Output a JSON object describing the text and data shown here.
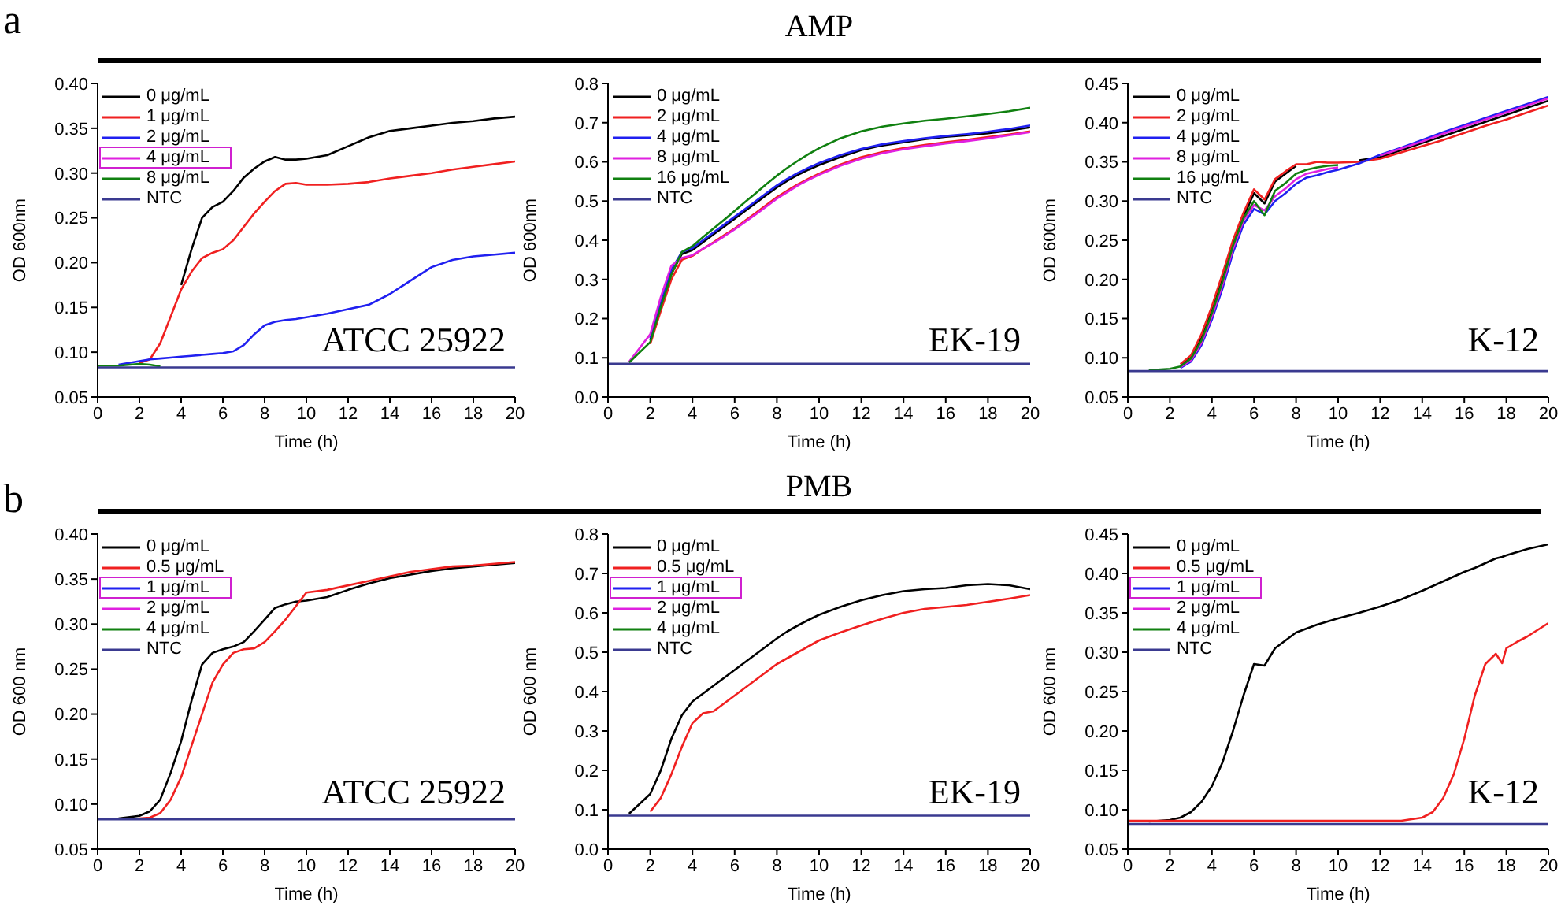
{
  "chart_data": [
    {
      "type": "line",
      "title": "a",
      "xlabel": "Time (h)",
      "ylabel": "OD 600nm",
      "annotations": [
        "ATCC 25922"
      ],
      "legend": "top left",
      "xlim": [
        0,
        20
      ],
      "xticks": [
        0,
        2,
        4,
        6,
        8,
        10,
        12,
        14,
        16,
        18,
        20
      ],
      "ylim": [
        0.05,
        0.4
      ],
      "yticks": [
        {
          "value": 0.05,
          "label": "0.05"
        },
        {
          "value": 0.1,
          "label": "0.10"
        },
        {
          "value": 0.15,
          "label": "0.15"
        },
        {
          "value": 0.2,
          "label": "0.20"
        },
        {
          "value": 0.25,
          "label": "0.25"
        },
        {
          "value": 0.3,
          "label": "0.30"
        },
        {
          "value": 0.35,
          "label": "0.35"
        },
        {
          "value": 0.4,
          "label": "0.40"
        }
      ],
      "x": [
        0,
        1,
        2,
        2.5,
        3,
        3.5,
        4,
        4.5,
        5,
        5.5,
        6,
        6.5,
        7,
        7.5,
        8,
        8.5,
        9,
        9.5,
        10,
        11,
        12,
        13,
        14,
        15,
        16,
        17,
        18,
        19,
        20
      ],
      "series": [
        {
          "name": "0 μg/mL",
          "color": "#000000",
          "values": [
            null,
            null,
            null,
            null,
            null,
            null,
            0.175,
            0.215,
            0.25,
            0.262,
            0.268,
            0.28,
            0.295,
            0.305,
            0.313,
            0.318,
            0.315,
            0.315,
            0.316,
            0.32,
            0.33,
            0.34,
            0.347,
            0.35,
            0.353,
            0.356,
            0.358,
            0.361,
            0.363
          ]
        },
        {
          "name": "1 μg/mL",
          "color": "#f02020",
          "values": [
            null,
            null,
            0.088,
            0.092,
            0.11,
            0.14,
            0.17,
            0.19,
            0.205,
            0.211,
            0.215,
            0.225,
            0.24,
            0.255,
            0.268,
            0.28,
            0.288,
            0.289,
            0.287,
            0.287,
            0.288,
            0.29,
            0.294,
            0.297,
            0.3,
            0.304,
            0.307,
            0.31,
            0.313
          ]
        },
        {
          "name": "2 μg/mL",
          "color": "#2020f0",
          "values": [
            null,
            0.086,
            0.09,
            0.092,
            0.093,
            0.094,
            0.095,
            0.096,
            0.097,
            0.098,
            0.099,
            0.101,
            0.108,
            0.12,
            0.13,
            0.134,
            0.136,
            0.137,
            0.139,
            0.143,
            0.148,
            0.153,
            0.165,
            0.18,
            0.195,
            0.203,
            0.207,
            0.209,
            0.211
          ]
        },
        {
          "name": "4 μg/mL",
          "color": "#e020e0",
          "values": [
            null,
            null,
            null,
            null,
            null,
            null,
            null,
            null,
            null,
            null,
            null,
            null,
            null,
            null,
            null,
            null,
            null,
            null,
            null,
            null,
            null,
            null,
            null,
            null,
            null,
            null,
            null,
            null,
            null
          ]
        },
        {
          "name": "8 μg/mL",
          "color": "#108010",
          "values": [
            0.085,
            0.085,
            0.087,
            0.086,
            0.084,
            null,
            null,
            null,
            null,
            null,
            null,
            null,
            null,
            null,
            null,
            null,
            null,
            null,
            null,
            null,
            null,
            null,
            null,
            null,
            null,
            null,
            null,
            null,
            null
          ]
        },
        {
          "name": "NTC",
          "color": "#3a3a90",
          "values": [
            0.083,
            0.083,
            0.083,
            0.083,
            0.083,
            0.083,
            0.083,
            0.083,
            0.083,
            0.083,
            0.083,
            0.083,
            0.083,
            0.083,
            0.083,
            0.083,
            0.083,
            0.083,
            0.083,
            0.083,
            0.083,
            0.083,
            0.083,
            0.083,
            0.083,
            0.083,
            0.083,
            0.083,
            0.083
          ]
        }
      ]
    },
    {
      "type": "line",
      "title": "AMP",
      "xlabel": "Time (h)",
      "ylabel": "OD 600nm",
      "annotations": [
        "EK-19"
      ],
      "legend": "top left",
      "xlim": [
        0,
        20
      ],
      "xticks": [
        0,
        2,
        4,
        6,
        8,
        10,
        12,
        14,
        16,
        18,
        20
      ],
      "ylim": [
        0,
        0.8
      ],
      "yticks": [
        {
          "value": 0,
          "label": "0.0"
        },
        {
          "value": 0.1,
          "label": "0.1"
        },
        {
          "value": 0.2,
          "label": "0.2"
        },
        {
          "value": 0.3,
          "label": "0.3"
        },
        {
          "value": 0.4,
          "label": "0.4"
        },
        {
          "value": 0.5,
          "label": "0.5"
        },
        {
          "value": 0.6,
          "label": "0.6"
        },
        {
          "value": 0.7,
          "label": "0.7"
        },
        {
          "value": 0.8,
          "label": "0.8"
        }
      ],
      "x": [
        0,
        1,
        2,
        2.5,
        3,
        3.5,
        4,
        4.5,
        5,
        5.5,
        6,
        6.5,
        7,
        7.5,
        8,
        8.5,
        9,
        9.5,
        10,
        11,
        12,
        13,
        14,
        15,
        16,
        17,
        18,
        19,
        20
      ],
      "series": [
        {
          "name": "0 μg/mL",
          "color": "#000000",
          "values": [
            null,
            null,
            0.145,
            0.235,
            0.315,
            0.365,
            0.375,
            0.395,
            0.415,
            0.435,
            0.455,
            0.475,
            0.495,
            0.515,
            0.535,
            0.552,
            0.567,
            0.58,
            0.592,
            0.612,
            0.63,
            0.642,
            0.65,
            0.658,
            0.664,
            0.668,
            0.673,
            0.68,
            0.688
          ]
        },
        {
          "name": "2 μg/mL",
          "color": "#f02020",
          "values": [
            null,
            null,
            0.135,
            0.22,
            0.3,
            0.35,
            0.36,
            0.378,
            0.395,
            0.413,
            0.43,
            0.45,
            0.47,
            0.49,
            0.51,
            0.527,
            0.543,
            0.557,
            0.57,
            0.593,
            0.612,
            0.625,
            0.635,
            0.643,
            0.65,
            0.656,
            0.663,
            0.67,
            0.678
          ]
        },
        {
          "name": "4 μg/mL",
          "color": "#2020f0",
          "values": [
            null,
            null,
            0.15,
            0.245,
            0.325,
            0.37,
            0.38,
            0.4,
            0.42,
            0.44,
            0.46,
            0.48,
            0.5,
            0.52,
            0.54,
            0.557,
            0.572,
            0.585,
            0.597,
            0.617,
            0.633,
            0.645,
            0.653,
            0.66,
            0.666,
            0.671,
            0.677,
            0.684,
            0.693
          ]
        },
        {
          "name": "8 μg/mL",
          "color": "#e020e0",
          "values": [
            null,
            0.09,
            0.16,
            0.255,
            0.335,
            0.355,
            0.362,
            0.378,
            0.393,
            0.41,
            0.428,
            0.447,
            0.466,
            0.486,
            0.506,
            0.523,
            0.54,
            0.554,
            0.567,
            0.59,
            0.608,
            0.622,
            0.632,
            0.64,
            0.647,
            0.653,
            0.66,
            0.668,
            0.676
          ]
        },
        {
          "name": "16 μg/mL",
          "color": "#108010",
          "values": [
            null,
            0.088,
            0.14,
            0.23,
            0.312,
            0.37,
            0.385,
            0.408,
            0.43,
            0.452,
            0.475,
            0.498,
            0.52,
            0.543,
            0.565,
            0.585,
            0.603,
            0.62,
            0.635,
            0.66,
            0.678,
            0.69,
            0.698,
            0.705,
            0.71,
            0.716,
            0.722,
            0.729,
            0.738
          ]
        },
        {
          "name": "NTC",
          "color": "#3a3a90",
          "values": [
            0.085,
            0.085,
            0.085,
            0.085,
            0.085,
            0.085,
            0.085,
            0.085,
            0.085,
            0.085,
            0.085,
            0.085,
            0.085,
            0.085,
            0.085,
            0.085,
            0.085,
            0.085,
            0.085,
            0.085,
            0.085,
            0.085,
            0.085,
            0.085,
            0.085,
            0.085,
            0.085,
            0.085,
            0.085
          ]
        }
      ]
    },
    {
      "type": "line",
      "xlabel": "Time (h)",
      "ylabel": "OD 600nm",
      "annotations": [
        "K-12"
      ],
      "legend": "top left",
      "xlim": [
        0,
        20
      ],
      "xticks": [
        0,
        2,
        4,
        6,
        8,
        10,
        12,
        14,
        16,
        18,
        20
      ],
      "ylim": [
        0.05,
        0.45
      ],
      "yticks": [
        {
          "value": 0.05,
          "label": "0.05"
        },
        {
          "value": 0.1,
          "label": "0.10"
        },
        {
          "value": 0.15,
          "label": "0.15"
        },
        {
          "value": 0.2,
          "label": "0.20"
        },
        {
          "value": 0.25,
          "label": "0.25"
        },
        {
          "value": 0.3,
          "label": "0.30"
        },
        {
          "value": 0.35,
          "label": "0.35"
        },
        {
          "value": 0.4,
          "label": "0.40"
        },
        {
          "value": 0.45,
          "label": "0.45"
        }
      ],
      "x": [
        0,
        1,
        2,
        2.5,
        3,
        3.5,
        4,
        4.5,
        5,
        5.5,
        6,
        6.5,
        7,
        7.5,
        8,
        8.5,
        9,
        9.5,
        10,
        11,
        12,
        13,
        14,
        15,
        16,
        17,
        18,
        19,
        20
      ],
      "series": [
        {
          "name": "0 μg/mL",
          "color": "#000000",
          "values": [
            null,
            null,
            null,
            0.09,
            0.1,
            0.125,
            0.16,
            0.2,
            0.245,
            0.28,
            0.31,
            0.297,
            0.325,
            0.335,
            0.345,
            null,
            null,
            null,
            null,
            0.352,
            0.356,
            0.365,
            0.374,
            0.383,
            0.392,
            0.401,
            0.41,
            0.419,
            0.428
          ]
        },
        {
          "name": "2 μg/mL",
          "color": "#f02020",
          "values": [
            null,
            null,
            null,
            0.092,
            0.103,
            0.13,
            0.166,
            0.207,
            0.25,
            0.285,
            0.315,
            0.302,
            0.328,
            0.338,
            0.347,
            0.347,
            0.35,
            0.349,
            0.349,
            0.35,
            0.354,
            0.362,
            0.37,
            0.378,
            0.387,
            0.396,
            0.404,
            0.413,
            0.422
          ]
        },
        {
          "name": "4 μg/mL",
          "color": "#2020f0",
          "values": [
            null,
            null,
            null,
            0.087,
            0.095,
            0.116,
            0.149,
            0.188,
            0.234,
            0.27,
            0.29,
            0.283,
            0.3,
            0.31,
            0.322,
            0.33,
            0.333,
            0.337,
            0.34,
            0.348,
            0.359,
            0.368,
            0.378,
            0.388,
            0.397,
            0.406,
            0.415,
            0.424,
            0.433
          ]
        },
        {
          "name": "8 μg/mL",
          "color": "#e020e0",
          "values": [
            null,
            null,
            null,
            0.088,
            0.097,
            0.119,
            0.153,
            0.193,
            0.239,
            0.275,
            0.295,
            0.288,
            0.306,
            0.316,
            0.328,
            0.335,
            0.338,
            0.341,
            0.343,
            null,
            0.358,
            0.367,
            0.376,
            0.386,
            0.395,
            0.404,
            0.413,
            0.422,
            0.431
          ]
        },
        {
          "name": "16 μg/mL",
          "color": "#108010",
          "values": [
            null,
            0.084,
            0.086,
            0.089,
            0.099,
            0.122,
            0.157,
            0.197,
            0.243,
            0.278,
            0.3,
            0.282,
            0.313,
            0.323,
            0.335,
            0.34,
            0.343,
            0.345,
            0.346,
            null,
            null,
            null,
            null,
            null,
            null,
            null,
            null,
            null,
            null
          ]
        },
        {
          "name": "NTC",
          "color": "#3a3a90",
          "values": [
            0.083,
            0.083,
            0.083,
            0.083,
            0.083,
            0.083,
            0.083,
            0.083,
            0.083,
            0.083,
            0.083,
            0.083,
            0.083,
            0.083,
            0.083,
            0.083,
            0.083,
            0.083,
            0.083,
            0.083,
            0.083,
            0.083,
            0.083,
            0.083,
            0.083,
            0.083,
            0.083,
            0.083,
            0.083
          ]
        }
      ]
    },
    {
      "type": "line",
      "title": "b",
      "xlabel": "Time (h)",
      "ylabel": "OD 600 nm",
      "annotations": [
        "ATCC 25922"
      ],
      "legend": "top left",
      "xlim": [
        0,
        20
      ],
      "xticks": [
        0,
        2,
        4,
        6,
        8,
        10,
        12,
        14,
        16,
        18,
        20
      ],
      "ylim": [
        0.05,
        0.4
      ],
      "yticks": [
        {
          "value": 0.05,
          "label": "0.05"
        },
        {
          "value": 0.1,
          "label": "0.10"
        },
        {
          "value": 0.15,
          "label": "0.15"
        },
        {
          "value": 0.2,
          "label": "0.20"
        },
        {
          "value": 0.25,
          "label": "0.25"
        },
        {
          "value": 0.3,
          "label": "0.30"
        },
        {
          "value": 0.35,
          "label": "0.35"
        },
        {
          "value": 0.4,
          "label": "0.40"
        }
      ],
      "x": [
        0,
        1,
        2,
        2.5,
        3,
        3.5,
        4,
        4.5,
        5,
        5.5,
        6,
        6.5,
        7,
        7.5,
        8,
        8.5,
        9,
        9.5,
        10,
        11,
        12,
        13,
        14,
        15,
        16,
        17,
        18,
        19,
        20
      ],
      "series": [
        {
          "name": "0 μg/mL",
          "color": "#000000",
          "values": [
            null,
            0.084,
            0.087,
            0.092,
            0.105,
            0.135,
            0.17,
            0.215,
            0.255,
            0.268,
            0.272,
            0.275,
            0.28,
            0.292,
            0.305,
            0.318,
            0.322,
            0.325,
            0.326,
            0.33,
            0.338,
            0.345,
            0.351,
            0.355,
            0.359,
            0.362,
            0.364,
            0.366,
            0.368
          ]
        },
        {
          "name": "0.5 μg/mL",
          "color": "#f02020",
          "values": [
            null,
            null,
            0.084,
            0.085,
            0.09,
            0.105,
            0.13,
            0.165,
            0.2,
            0.235,
            0.255,
            0.268,
            0.272,
            0.273,
            0.28,
            0.292,
            0.305,
            0.32,
            0.335,
            0.338,
            0.343,
            0.348,
            0.353,
            0.358,
            0.361,
            0.364,
            0.365,
            0.367,
            0.369
          ]
        },
        {
          "name": "1 μg/mL",
          "color": "#2020f0",
          "values": [
            null,
            null,
            null,
            null,
            null,
            null,
            null,
            null,
            null,
            null,
            null,
            null,
            null,
            null,
            null,
            null,
            null,
            null,
            null,
            null,
            null,
            null,
            null,
            null,
            null,
            null,
            null,
            null,
            null
          ]
        },
        {
          "name": "2 μg/mL",
          "color": "#e020e0",
          "values": [
            null,
            null,
            null,
            null,
            null,
            null,
            null,
            null,
            null,
            null,
            null,
            null,
            null,
            null,
            null,
            null,
            null,
            null,
            null,
            null,
            null,
            null,
            null,
            null,
            null,
            null,
            null,
            null,
            null
          ]
        },
        {
          "name": "4 μg/mL",
          "color": "#108010",
          "values": [
            null,
            null,
            null,
            null,
            null,
            null,
            null,
            null,
            null,
            null,
            null,
            null,
            null,
            null,
            null,
            null,
            null,
            null,
            null,
            null,
            null,
            null,
            null,
            null,
            null,
            null,
            null,
            null,
            null
          ]
        },
        {
          "name": "NTC",
          "color": "#3a3a90",
          "values": [
            0.083,
            0.083,
            0.083,
            0.083,
            0.083,
            0.083,
            0.083,
            0.083,
            0.083,
            0.083,
            0.083,
            0.083,
            0.083,
            0.083,
            0.083,
            0.083,
            0.083,
            0.083,
            0.083,
            0.083,
            0.083,
            0.083,
            0.083,
            0.083,
            0.083,
            0.083,
            0.083,
            0.083,
            0.083
          ]
        }
      ]
    },
    {
      "type": "line",
      "title": "PMB",
      "xlabel": "Time (h)",
      "ylabel": "OD 600 nm",
      "annotations": [
        "EK-19"
      ],
      "legend": "top left",
      "xlim": [
        0,
        20
      ],
      "xticks": [
        0,
        2,
        4,
        6,
        8,
        10,
        12,
        14,
        16,
        18,
        20
      ],
      "ylim": [
        0,
        0.8
      ],
      "yticks": [
        {
          "value": 0,
          "label": "0.0"
        },
        {
          "value": 0.1,
          "label": "0.1"
        },
        {
          "value": 0.2,
          "label": "0.2"
        },
        {
          "value": 0.3,
          "label": "0.3"
        },
        {
          "value": 0.4,
          "label": "0.4"
        },
        {
          "value": 0.5,
          "label": "0.5"
        },
        {
          "value": 0.6,
          "label": "0.6"
        },
        {
          "value": 0.7,
          "label": "0.7"
        },
        {
          "value": 0.8,
          "label": "0.8"
        }
      ],
      "x": [
        0,
        1,
        2,
        2.5,
        3,
        3.5,
        4,
        4.5,
        5,
        5.5,
        6,
        6.5,
        7,
        7.5,
        8,
        8.5,
        9,
        9.5,
        10,
        11,
        12,
        13,
        14,
        15,
        16,
        17,
        18,
        19,
        20
      ],
      "series": [
        {
          "name": "0 μg/mL",
          "color": "#000000",
          "values": [
            null,
            0.09,
            0.14,
            0.2,
            0.28,
            0.34,
            0.375,
            0.395,
            0.415,
            0.435,
            0.455,
            0.475,
            0.495,
            0.515,
            0.535,
            0.553,
            0.568,
            0.582,
            0.595,
            0.615,
            0.632,
            0.645,
            0.655,
            0.66,
            0.663,
            0.67,
            0.673,
            0.67,
            0.66
          ]
        },
        {
          "name": "0.5 μg/mL",
          "color": "#f02020",
          "values": [
            null,
            null,
            0.095,
            0.13,
            0.19,
            0.26,
            0.32,
            0.345,
            0.35,
            0.37,
            0.39,
            0.41,
            0.43,
            0.45,
            0.47,
            0.485,
            0.5,
            0.515,
            0.53,
            0.55,
            0.568,
            0.585,
            0.6,
            0.61,
            0.615,
            0.62,
            0.628,
            0.636,
            0.645
          ]
        },
        {
          "name": "1 μg/mL",
          "color": "#2020f0",
          "values": [
            null,
            null,
            null,
            null,
            null,
            null,
            null,
            null,
            null,
            null,
            null,
            null,
            null,
            null,
            null,
            null,
            null,
            null,
            null,
            null,
            null,
            null,
            null,
            null,
            null,
            null,
            null,
            null,
            null
          ]
        },
        {
          "name": "2 μg/mL",
          "color": "#e020e0",
          "values": [
            null,
            null,
            null,
            null,
            null,
            null,
            null,
            null,
            null,
            null,
            null,
            null,
            null,
            null,
            null,
            null,
            null,
            null,
            null,
            null,
            null,
            null,
            null,
            null,
            null,
            null,
            null,
            null,
            null
          ]
        },
        {
          "name": "4 μg/mL",
          "color": "#108010",
          "values": [
            null,
            null,
            null,
            null,
            null,
            null,
            null,
            null,
            null,
            null,
            null,
            null,
            null,
            null,
            null,
            null,
            null,
            null,
            null,
            null,
            null,
            null,
            null,
            null,
            null,
            null,
            null,
            null,
            null
          ]
        },
        {
          "name": "NTC",
          "color": "#3a3a90",
          "values": [
            0.085,
            0.085,
            0.085,
            0.085,
            0.085,
            0.085,
            0.085,
            0.085,
            0.085,
            0.085,
            0.085,
            0.085,
            0.085,
            0.085,
            0.085,
            0.085,
            0.085,
            0.085,
            0.085,
            0.085,
            0.085,
            0.085,
            0.085,
            0.085,
            0.085,
            0.085,
            0.085,
            0.085,
            0.085
          ]
        }
      ]
    },
    {
      "type": "line",
      "xlabel": "Time (h)",
      "ylabel": "OD 600 nm",
      "annotations": [
        "K-12"
      ],
      "legend": "top left",
      "xlim": [
        0,
        20
      ],
      "xticks": [
        0,
        2,
        4,
        6,
        8,
        10,
        12,
        14,
        16,
        18,
        20
      ],
      "ylim": [
        0.05,
        0.45
      ],
      "yticks": [
        {
          "value": 0.05,
          "label": "0.05"
        },
        {
          "value": 0.1,
          "label": "0.10"
        },
        {
          "value": 0.15,
          "label": "0.15"
        },
        {
          "value": 0.2,
          "label": "0.20"
        },
        {
          "value": 0.25,
          "label": "0.25"
        },
        {
          "value": 0.3,
          "label": "0.30"
        },
        {
          "value": 0.35,
          "label": "0.35"
        },
        {
          "value": 0.4,
          "label": "0.40"
        },
        {
          "value": 0.45,
          "label": "0.45"
        }
      ],
      "x": [
        0,
        1,
        2,
        2.5,
        3,
        3.5,
        4,
        4.5,
        5,
        5.5,
        6,
        6.5,
        7,
        7.5,
        8,
        9,
        10,
        11,
        12,
        13,
        14,
        14.5,
        15,
        15.5,
        16,
        16.5,
        17,
        17.5,
        17.8,
        18,
        18.5,
        19,
        20
      ],
      "series": [
        {
          "name": "0 μg/mL",
          "color": "#000000",
          "values": [
            null,
            0.085,
            0.087,
            0.09,
            0.097,
            0.11,
            0.13,
            0.16,
            0.2,
            0.245,
            0.285,
            0.283,
            0.305,
            0.315,
            0.325,
            0.335,
            0.343,
            0.35,
            0.358,
            0.367,
            0.378,
            0.384,
            0.39,
            0.396,
            0.402,
            0.407,
            0.413,
            0.419,
            0.421,
            0.423,
            0.427,
            0.431,
            0.437
          ]
        },
        {
          "name": "0.5 μg/mL",
          "color": "#f02020",
          "values": [
            0.086,
            0.086,
            0.086,
            0.086,
            0.086,
            0.086,
            0.086,
            0.086,
            0.086,
            0.086,
            0.086,
            0.086,
            0.086,
            0.086,
            0.086,
            0.086,
            0.086,
            0.086,
            0.086,
            0.086,
            0.09,
            0.097,
            0.115,
            0.145,
            0.19,
            0.245,
            0.285,
            0.298,
            0.286,
            0.305,
            0.313,
            0.32,
            0.337
          ]
        },
        {
          "name": "1 μg/mL",
          "color": "#2020f0",
          "values": [
            null,
            null,
            null,
            null,
            null,
            null,
            null,
            null,
            null,
            null,
            null,
            null,
            null,
            null,
            null,
            null,
            null,
            null,
            null,
            null,
            null,
            null,
            null,
            null,
            null,
            null,
            null,
            null,
            null,
            null,
            null,
            null,
            null
          ]
        },
        {
          "name": "2 μg/mL",
          "color": "#e020e0",
          "values": [
            null,
            null,
            null,
            null,
            null,
            null,
            null,
            null,
            null,
            null,
            null,
            null,
            null,
            null,
            null,
            null,
            null,
            null,
            null,
            null,
            null,
            null,
            null,
            null,
            null,
            null,
            null,
            null,
            null,
            null,
            null,
            null,
            null
          ]
        },
        {
          "name": "4 μg/mL",
          "color": "#108010",
          "values": [
            null,
            null,
            null,
            null,
            null,
            null,
            null,
            null,
            null,
            null,
            null,
            null,
            null,
            null,
            null,
            null,
            null,
            null,
            null,
            null,
            null,
            null,
            null,
            null,
            null,
            null,
            null,
            null,
            null,
            null,
            null,
            null,
            null
          ]
        },
        {
          "name": "NTC",
          "color": "#3a3a90",
          "values": [
            0.082,
            0.082,
            0.082,
            0.082,
            0.082,
            0.082,
            0.082,
            0.082,
            0.082,
            0.082,
            0.082,
            0.082,
            0.082,
            0.082,
            0.082,
            0.082,
            0.082,
            0.082,
            0.082,
            0.082,
            0.082,
            0.082,
            0.082,
            0.082,
            0.082,
            0.082,
            0.082,
            0.082,
            0.082,
            0.082,
            0.082,
            0.082,
            0.082
          ]
        }
      ]
    }
  ]
}
